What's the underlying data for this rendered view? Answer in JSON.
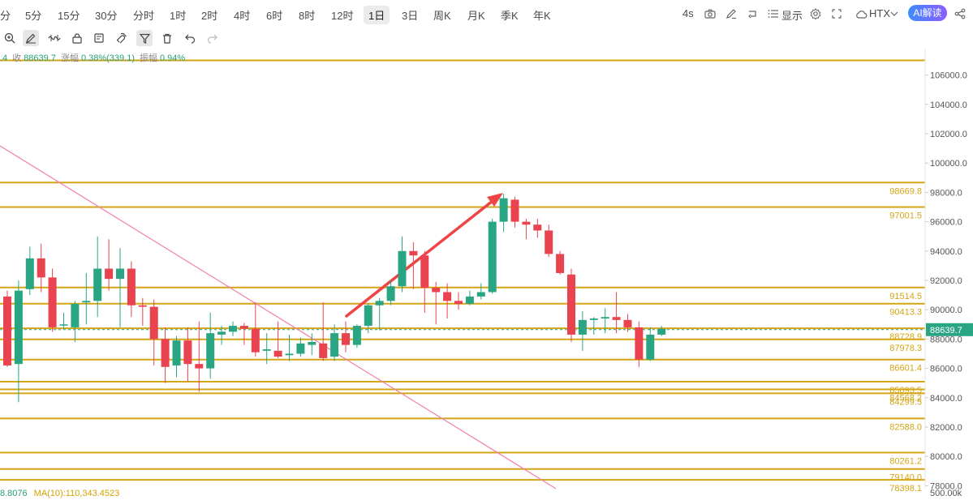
{
  "timeframes": [
    "分",
    "5分",
    "15分",
    "30分",
    "分时",
    "1时",
    "2时",
    "4时",
    "6时",
    "8时",
    "12时",
    "1日",
    "3日",
    "周K",
    "月K",
    "季K",
    "年K"
  ],
  "active_timeframe": "1日",
  "right_controls": {
    "countdown": "4s",
    "display_label": "显示",
    "exchange": "HTX",
    "ai_label": "AI解读"
  },
  "ohlc": {
    "prefix": ".4",
    "close_label": "收",
    "close": "88639.7",
    "change_label": "涨幅",
    "change": "0.38%(339.1)",
    "amp_label": "振幅",
    "amp": "0.94%"
  },
  "ma_row": {
    "vol_ma5": "8.8076",
    "vol_ma10": "MA(10):110,343.4523"
  },
  "volume_axis_label": "500.00k",
  "chart_data": {
    "type": "candlestick",
    "y_ticks": [
      "106000.0",
      "104000.0",
      "102000.0",
      "100000.0",
      "98000.0",
      "96000.0",
      "94000.0",
      "92000.0",
      "90000.0",
      "88000.0",
      "86000.0",
      "84000.0",
      "82000.0",
      "80000.0",
      "78000.0"
    ],
    "ylim": [
      77800,
      107800
    ],
    "current_price": "88639.7",
    "current_price_color": "#2aa583",
    "level_color": "#d4a514",
    "levels": [
      {
        "price": 107000,
        "label": ""
      },
      {
        "price": 98669.8,
        "label": "98669.8"
      },
      {
        "price": 97001.5,
        "label": "97001.5"
      },
      {
        "price": 91514.5,
        "label": "91514.5"
      },
      {
        "price": 90413.3,
        "label": "90413.3"
      },
      {
        "price": 88728.9,
        "label": "88728.9"
      },
      {
        "price": 87978.3,
        "label": "87978.3"
      },
      {
        "price": 86601.4,
        "label": "86601.4"
      },
      {
        "price": 85093.5,
        "label": "85093.5"
      },
      {
        "price": 84568.2,
        "label": "84568.2"
      },
      {
        "price": 84299.5,
        "label": "84299.5"
      },
      {
        "price": 82588.0,
        "label": "82588.0"
      },
      {
        "price": 80261.2,
        "label": "80261.2"
      },
      {
        "price": 79140.0,
        "label": "79140.0"
      },
      {
        "price": 78398.1,
        "label": "78398.1"
      }
    ],
    "up_color": "#2aa583",
    "down_color": "#e8434f",
    "candles": [
      {
        "o": 90900,
        "h": 91300,
        "l": 86100,
        "c": 86200
      },
      {
        "o": 86300,
        "h": 92000,
        "l": 83700,
        "c": 91300
      },
      {
        "o": 91400,
        "h": 94300,
        "l": 91000,
        "c": 93500
      },
      {
        "o": 93500,
        "h": 94500,
        "l": 91200,
        "c": 92200
      },
      {
        "o": 92200,
        "h": 92800,
        "l": 88500,
        "c": 88800
      },
      {
        "o": 89000,
        "h": 89800,
        "l": 88700,
        "c": 89000
      },
      {
        "o": 88800,
        "h": 90600,
        "l": 87800,
        "c": 90400
      },
      {
        "o": 90500,
        "h": 92500,
        "l": 89000,
        "c": 90600
      },
      {
        "o": 90600,
        "h": 95000,
        "l": 89500,
        "c": 92800
      },
      {
        "o": 92800,
        "h": 94800,
        "l": 91300,
        "c": 92100
      },
      {
        "o": 92100,
        "h": 94200,
        "l": 88800,
        "c": 92800
      },
      {
        "o": 92800,
        "h": 93300,
        "l": 89500,
        "c": 90300
      },
      {
        "o": 90300,
        "h": 90800,
        "l": 88900,
        "c": 90200
      },
      {
        "o": 90200,
        "h": 90700,
        "l": 86200,
        "c": 88000
      },
      {
        "o": 88000,
        "h": 88800,
        "l": 85000,
        "c": 86100
      },
      {
        "o": 86200,
        "h": 88200,
        "l": 85400,
        "c": 87900
      },
      {
        "o": 87900,
        "h": 88800,
        "l": 85100,
        "c": 86300
      },
      {
        "o": 86300,
        "h": 89200,
        "l": 84400,
        "c": 86000
      },
      {
        "o": 86000,
        "h": 89800,
        "l": 85300,
        "c": 88400
      },
      {
        "o": 88300,
        "h": 88900,
        "l": 87600,
        "c": 88500
      },
      {
        "o": 88500,
        "h": 89200,
        "l": 88200,
        "c": 88900
      },
      {
        "o": 88900,
        "h": 89100,
        "l": 87600,
        "c": 88700
      },
      {
        "o": 88700,
        "h": 90500,
        "l": 86800,
        "c": 87100
      },
      {
        "o": 87200,
        "h": 88400,
        "l": 86300,
        "c": 87300
      },
      {
        "o": 87200,
        "h": 89200,
        "l": 86700,
        "c": 86800
      },
      {
        "o": 86900,
        "h": 88300,
        "l": 86500,
        "c": 87000
      },
      {
        "o": 87000,
        "h": 88100,
        "l": 86800,
        "c": 87700
      },
      {
        "o": 87600,
        "h": 88400,
        "l": 86900,
        "c": 87800
      },
      {
        "o": 87700,
        "h": 90500,
        "l": 86500,
        "c": 86700
      },
      {
        "o": 86800,
        "h": 89000,
        "l": 86500,
        "c": 88400
      },
      {
        "o": 88400,
        "h": 89200,
        "l": 87100,
        "c": 87600
      },
      {
        "o": 87600,
        "h": 89000,
        "l": 87400,
        "c": 88900
      },
      {
        "o": 88900,
        "h": 90400,
        "l": 88400,
        "c": 90300
      },
      {
        "o": 90300,
        "h": 90800,
        "l": 88600,
        "c": 90600
      },
      {
        "o": 90600,
        "h": 92000,
        "l": 90300,
        "c": 91600
      },
      {
        "o": 91600,
        "h": 95000,
        "l": 91200,
        "c": 94000
      },
      {
        "o": 94000,
        "h": 94600,
        "l": 91400,
        "c": 93700
      },
      {
        "o": 93700,
        "h": 94000,
        "l": 89800,
        "c": 91500
      },
      {
        "o": 91500,
        "h": 91900,
        "l": 89000,
        "c": 91200
      },
      {
        "o": 91200,
        "h": 91800,
        "l": 89400,
        "c": 90600
      },
      {
        "o": 90600,
        "h": 91200,
        "l": 90000,
        "c": 90400
      },
      {
        "o": 90400,
        "h": 91300,
        "l": 90300,
        "c": 90900
      },
      {
        "o": 90900,
        "h": 91800,
        "l": 90700,
        "c": 91200
      },
      {
        "o": 91200,
        "h": 96200,
        "l": 91100,
        "c": 96000
      },
      {
        "o": 96000,
        "h": 97900,
        "l": 95300,
        "c": 97600
      },
      {
        "o": 97500,
        "h": 97700,
        "l": 95600,
        "c": 96000
      },
      {
        "o": 96000,
        "h": 96200,
        "l": 94800,
        "c": 95800
      },
      {
        "o": 95800,
        "h": 96200,
        "l": 94900,
        "c": 95400
      },
      {
        "o": 95400,
        "h": 95800,
        "l": 93600,
        "c": 93800
      },
      {
        "o": 93800,
        "h": 94000,
        "l": 92400,
        "c": 92500
      },
      {
        "o": 92400,
        "h": 92800,
        "l": 87800,
        "c": 88300
      },
      {
        "o": 88300,
        "h": 89900,
        "l": 87200,
        "c": 89300
      },
      {
        "o": 89300,
        "h": 89500,
        "l": 88300,
        "c": 89400
      },
      {
        "o": 89400,
        "h": 90100,
        "l": 88400,
        "c": 89500
      },
      {
        "o": 89500,
        "h": 91200,
        "l": 88400,
        "c": 89300
      },
      {
        "o": 89300,
        "h": 89700,
        "l": 88500,
        "c": 88800
      },
      {
        "o": 88800,
        "h": 89200,
        "l": 86100,
        "c": 86600
      },
      {
        "o": 86600,
        "h": 88800,
        "l": 86500,
        "c": 88300
      },
      {
        "o": 88300,
        "h": 88900,
        "l": 88200,
        "c": 88700
      }
    ]
  }
}
